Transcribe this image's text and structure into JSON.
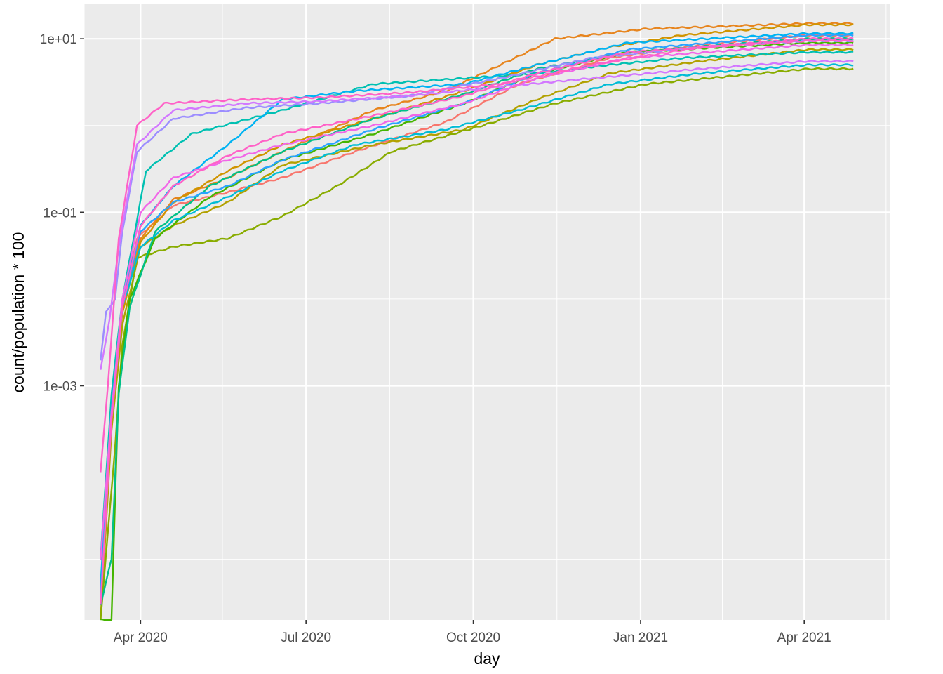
{
  "chart_data": {
    "type": "line",
    "xlabel": "day",
    "ylabel": "count/population * 100",
    "x_axis": {
      "type": "date",
      "range": [
        "2020-03-01",
        "2021-05-18"
      ],
      "major_ticks": [
        {
          "date": "2020-04-01",
          "label": "Apr 2020"
        },
        {
          "date": "2020-07-01",
          "label": "Jul 2020"
        },
        {
          "date": "2020-10-01",
          "label": "Oct 2020"
        },
        {
          "date": "2021-01-01",
          "label": "Jan 2021"
        },
        {
          "date": "2021-04-01",
          "label": "Apr 2021"
        }
      ],
      "minor_ticks": [
        "2020-03-01",
        "2020-05-16",
        "2020-08-16",
        "2020-11-16",
        "2021-02-15",
        "2021-05-16"
      ]
    },
    "y_axis": {
      "scale": "log10",
      "range": [
        2e-06,
        25
      ],
      "major_ticks": [
        {
          "value": 0.001,
          "label": "1e-03"
        },
        {
          "value": 0.1,
          "label": "1e-01"
        },
        {
          "value": 10,
          "label": "1e+01"
        }
      ],
      "minor_ticks": [
        1e-05,
        0.01,
        1
      ]
    },
    "grid": true,
    "legend": "none",
    "x_start": "2020-03-10",
    "x_end": "2021-04-28",
    "palette": [
      "#F8766D",
      "#E7851E",
      "#D09400",
      "#B2A100",
      "#89AC00",
      "#45B500",
      "#00BC51",
      "#00C087",
      "#00C0B2",
      "#00BCD6",
      "#00B3F2",
      "#29A3FF",
      "#9C8DFF",
      "#D277FF",
      "#F166E8",
      "#FF61C7"
    ],
    "series": [
      {
        "color": "#F8766D",
        "values": [
          [
            0,
            3e-06
          ],
          [
            6,
            0.0006
          ],
          [
            12,
            0.009
          ],
          [
            20,
            0.05
          ],
          [
            40,
            0.12
          ],
          [
            70,
            0.17
          ],
          [
            100,
            0.25
          ],
          [
            140,
            0.5
          ],
          [
            190,
            1.1
          ],
          [
            230,
            3
          ],
          [
            280,
            6
          ],
          [
            330,
            8.5
          ],
          [
            389,
            11
          ]
        ]
      },
      {
        "color": "#E7851E",
        "values": [
          [
            0,
            4e-06
          ],
          [
            6,
            0.0005
          ],
          [
            12,
            0.008
          ],
          [
            22,
            0.05
          ],
          [
            40,
            0.14
          ],
          [
            70,
            0.25
          ],
          [
            100,
            0.5
          ],
          [
            150,
            1.5
          ],
          [
            190,
            2.5
          ],
          [
            220,
            5
          ],
          [
            250,
            10
          ],
          [
            300,
            13
          ],
          [
            389,
            15
          ]
        ]
      },
      {
        "color": "#D09400",
        "values": [
          [
            0,
            3e-06
          ],
          [
            6,
            0.0004
          ],
          [
            12,
            0.007
          ],
          [
            22,
            0.045
          ],
          [
            40,
            0.13
          ],
          [
            70,
            0.3
          ],
          [
            100,
            0.6
          ],
          [
            150,
            1.2
          ],
          [
            200,
            2.5
          ],
          [
            240,
            5
          ],
          [
            280,
            8
          ],
          [
            320,
            11
          ],
          [
            389,
            14.5
          ]
        ]
      },
      {
        "color": "#B2A100",
        "values": [
          [
            0,
            2e-06
          ],
          [
            6,
            0.0003
          ],
          [
            12,
            0.005
          ],
          [
            22,
            0.04
          ],
          [
            40,
            0.07
          ],
          [
            70,
            0.13
          ],
          [
            100,
            0.35
          ],
          [
            150,
            0.6
          ],
          [
            200,
            0.9
          ],
          [
            240,
            2
          ],
          [
            280,
            4
          ],
          [
            330,
            5.5
          ],
          [
            389,
            7.5
          ]
        ]
      },
      {
        "color": "#89AC00",
        "values": [
          [
            0,
            2e-06
          ],
          [
            8,
            0.0002
          ],
          [
            12,
            0.003
          ],
          [
            20,
            0.03
          ],
          [
            40,
            0.04
          ],
          [
            70,
            0.05
          ],
          [
            100,
            0.09
          ],
          [
            130,
            0.2
          ],
          [
            160,
            0.5
          ],
          [
            210,
            1
          ],
          [
            250,
            1.8
          ],
          [
            300,
            3
          ],
          [
            389,
            4.5
          ]
        ]
      },
      {
        "color": "#45B500",
        "values": [
          [
            0,
            2e-06
          ],
          [
            6,
            2e-06
          ],
          [
            8,
            5e-05
          ],
          [
            10,
            0.001
          ],
          [
            16,
            0.01
          ],
          [
            30,
            0.05
          ],
          [
            60,
            0.15
          ],
          [
            100,
            0.4
          ],
          [
            150,
            0.8
          ],
          [
            200,
            1.8
          ],
          [
            240,
            4
          ],
          [
            290,
            7
          ],
          [
            389,
            9
          ]
        ]
      },
      {
        "color": "#00C087",
        "values": [
          [
            0,
            3e-06
          ],
          [
            6,
            1e-05
          ],
          [
            10,
            0.0008
          ],
          [
            16,
            0.008
          ],
          [
            30,
            0.06
          ],
          [
            60,
            0.2
          ],
          [
            100,
            0.5
          ],
          [
            150,
            1.2
          ],
          [
            200,
            2.3
          ],
          [
            240,
            4.5
          ],
          [
            290,
            7
          ],
          [
            389,
            10
          ]
        ]
      },
      {
        "color": "#00C0B2",
        "values": [
          [
            0,
            1e-05
          ],
          [
            6,
            0.0008
          ],
          [
            12,
            0.01
          ],
          [
            25,
            0.3
          ],
          [
            50,
            0.8
          ],
          [
            100,
            1.5
          ],
          [
            150,
            3
          ],
          [
            200,
            3.5
          ],
          [
            240,
            4
          ],
          [
            280,
            5
          ],
          [
            320,
            6
          ],
          [
            389,
            7
          ]
        ]
      },
      {
        "color": "#00BCD6",
        "values": [
          [
            0,
            5e-06
          ],
          [
            6,
            0.0006
          ],
          [
            12,
            0.008
          ],
          [
            22,
            0.04
          ],
          [
            40,
            0.08
          ],
          [
            70,
            0.15
          ],
          [
            100,
            0.3
          ],
          [
            140,
            0.6
          ],
          [
            190,
            0.9
          ],
          [
            230,
            1.5
          ],
          [
            280,
            3
          ],
          [
            330,
            4
          ],
          [
            389,
            5
          ]
        ]
      },
      {
        "color": "#00B3F2",
        "values": [
          [
            0,
            4e-06
          ],
          [
            6,
            0.0005
          ],
          [
            12,
            0.009
          ],
          [
            22,
            0.07
          ],
          [
            40,
            0.2
          ],
          [
            70,
            0.6
          ],
          [
            100,
            2
          ],
          [
            140,
            2.5
          ],
          [
            200,
            3
          ],
          [
            240,
            5
          ],
          [
            290,
            9
          ],
          [
            389,
            11.5
          ]
        ]
      },
      {
        "color": "#29A3FF",
        "values": [
          [
            0,
            4e-06
          ],
          [
            6,
            0.0004
          ],
          [
            12,
            0.008
          ],
          [
            22,
            0.06
          ],
          [
            40,
            0.13
          ],
          [
            70,
            0.2
          ],
          [
            100,
            0.4
          ],
          [
            150,
            0.9
          ],
          [
            200,
            1.8
          ],
          [
            240,
            4
          ],
          [
            290,
            7.5
          ],
          [
            389,
            11
          ]
        ]
      },
      {
        "color": "#9C8DFF",
        "values": [
          [
            0,
            0.002
          ],
          [
            3,
            0.007
          ],
          [
            8,
            0.01
          ],
          [
            12,
            0.06
          ],
          [
            20,
            0.5
          ],
          [
            40,
            1.2
          ],
          [
            80,
            1.6
          ],
          [
            120,
            1.8
          ],
          [
            170,
            2.2
          ],
          [
            220,
            3.5
          ],
          [
            270,
            6
          ],
          [
            330,
            8
          ],
          [
            389,
            9.5
          ]
        ]
      },
      {
        "color": "#D277FF",
        "values": [
          [
            0,
            0.0015
          ],
          [
            5,
            0.006
          ],
          [
            10,
            0.04
          ],
          [
            20,
            0.6
          ],
          [
            40,
            1.5
          ],
          [
            80,
            1.8
          ],
          [
            120,
            1.9
          ],
          [
            170,
            2.2
          ],
          [
            220,
            2.8
          ],
          [
            270,
            3.5
          ],
          [
            330,
            4.5
          ],
          [
            389,
            5.5
          ]
        ]
      },
      {
        "color": "#F166E8",
        "values": [
          [
            0,
            1e-05
          ],
          [
            6,
            0.0005
          ],
          [
            12,
            0.01
          ],
          [
            22,
            0.1
          ],
          [
            40,
            0.25
          ],
          [
            70,
            0.4
          ],
          [
            100,
            0.6
          ],
          [
            150,
            1
          ],
          [
            200,
            1.8
          ],
          [
            240,
            3.5
          ],
          [
            290,
            6
          ],
          [
            389,
            8.5
          ]
        ]
      },
      {
        "color": "#FF61C7",
        "values": [
          [
            0,
            0.0001
          ],
          [
            4,
            0.001
          ],
          [
            10,
            0.05
          ],
          [
            20,
            1
          ],
          [
            35,
            1.8
          ],
          [
            80,
            2
          ],
          [
            120,
            2.1
          ],
          [
            170,
            2.4
          ],
          [
            220,
            3
          ],
          [
            270,
            5
          ],
          [
            330,
            8
          ],
          [
            389,
            10
          ]
        ]
      },
      {
        "color": "#FF61C7",
        "values": [
          [
            0,
            3e-06
          ],
          [
            6,
            0.0004
          ],
          [
            12,
            0.008
          ],
          [
            22,
            0.07
          ],
          [
            40,
            0.2
          ],
          [
            70,
            0.45
          ],
          [
            100,
            0.8
          ],
          [
            150,
            1.3
          ],
          [
            200,
            2.2
          ],
          [
            240,
            4
          ],
          [
            290,
            7
          ],
          [
            389,
            9.5
          ]
        ]
      }
    ]
  }
}
